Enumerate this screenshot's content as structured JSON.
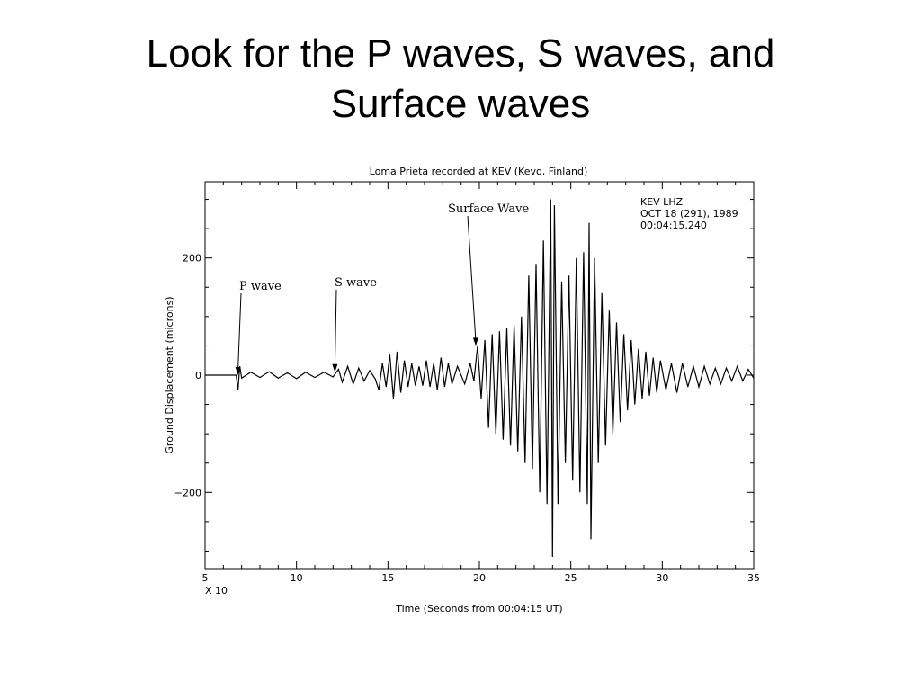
{
  "slide": {
    "title_line1": "Look for the P waves, S waves, and",
    "title_line2": "Surface waves"
  },
  "chart_data": {
    "type": "line",
    "title": "Loma Prieta recorded at KEV (Kevo, Finland)",
    "xlabel": "Time (Seconds from 00:04:15 UT)",
    "ylabel": "Ground Displacement (microns)",
    "x_multiplier_label": "X 10",
    "xlim": [
      5,
      35
    ],
    "ylim": [
      -330,
      330
    ],
    "xticks": [
      5,
      10,
      15,
      20,
      25,
      30,
      35
    ],
    "yticks": [
      200,
      0,
      -200
    ],
    "ytick_labels": [
      "200",
      "0",
      "−200"
    ],
    "grid": false,
    "info_lines": [
      "KEV   LHZ",
      "OCT 18 (291), 1989",
      "00:04:15.240"
    ],
    "annotations": [
      {
        "label": "P wave",
        "x": 6.8,
        "y": 0
      },
      {
        "label": "S wave",
        "x": 12.1,
        "y": 5
      },
      {
        "label": "Surface Wave",
        "x": 19.8,
        "y": 50
      }
    ],
    "series": [
      {
        "values": [
          [
            5.0,
            0
          ],
          [
            6.7,
            0
          ],
          [
            6.8,
            -25
          ],
          [
            6.9,
            15
          ],
          [
            7.0,
            -5
          ],
          [
            7.5,
            5
          ],
          [
            8.0,
            -4
          ],
          [
            8.5,
            6
          ],
          [
            9.0,
            -5
          ],
          [
            9.5,
            4
          ],
          [
            10.0,
            -6
          ],
          [
            10.5,
            5
          ],
          [
            11.0,
            -4
          ],
          [
            11.5,
            5
          ],
          [
            12.0,
            -3
          ],
          [
            12.3,
            10
          ],
          [
            12.5,
            -12
          ],
          [
            12.8,
            15
          ],
          [
            13.1,
            -15
          ],
          [
            13.4,
            12
          ],
          [
            13.7,
            -10
          ],
          [
            14.0,
            8
          ],
          [
            14.3,
            -6
          ],
          [
            14.5,
            -25
          ],
          [
            14.7,
            20
          ],
          [
            14.9,
            -20
          ],
          [
            15.1,
            35
          ],
          [
            15.3,
            -40
          ],
          [
            15.5,
            40
          ],
          [
            15.7,
            -30
          ],
          [
            15.9,
            25
          ],
          [
            16.1,
            -20
          ],
          [
            16.3,
            20
          ],
          [
            16.5,
            -18
          ],
          [
            16.7,
            15
          ],
          [
            16.9,
            -18
          ],
          [
            17.1,
            25
          ],
          [
            17.3,
            -20
          ],
          [
            17.5,
            20
          ],
          [
            17.7,
            -25
          ],
          [
            17.9,
            30
          ],
          [
            18.1,
            -20
          ],
          [
            18.3,
            20
          ],
          [
            18.5,
            -15
          ],
          [
            18.8,
            15
          ],
          [
            19.2,
            -15
          ],
          [
            19.5,
            20
          ],
          [
            19.7,
            -10
          ],
          [
            19.9,
            50
          ],
          [
            20.1,
            -40
          ],
          [
            20.3,
            60
          ],
          [
            20.5,
            -90
          ],
          [
            20.7,
            70
          ],
          [
            20.9,
            -100
          ],
          [
            21.1,
            75
          ],
          [
            21.3,
            -110
          ],
          [
            21.5,
            80
          ],
          [
            21.7,
            -120
          ],
          [
            21.9,
            85
          ],
          [
            22.1,
            -130
          ],
          [
            22.3,
            100
          ],
          [
            22.5,
            -150
          ],
          [
            22.7,
            170
          ],
          [
            22.9,
            -160
          ],
          [
            23.1,
            190
          ],
          [
            23.3,
            -200
          ],
          [
            23.5,
            230
          ],
          [
            23.7,
            -220
          ],
          [
            23.9,
            300
          ],
          [
            24.0,
            -310
          ],
          [
            24.1,
            290
          ],
          [
            24.3,
            -220
          ],
          [
            24.5,
            160
          ],
          [
            24.7,
            -150
          ],
          [
            24.9,
            170
          ],
          [
            25.1,
            -180
          ],
          [
            25.3,
            200
          ],
          [
            25.5,
            -200
          ],
          [
            25.7,
            210
          ],
          [
            25.9,
            -220
          ],
          [
            26.0,
            260
          ],
          [
            26.1,
            -280
          ],
          [
            26.3,
            200
          ],
          [
            26.5,
            -150
          ],
          [
            26.7,
            140
          ],
          [
            26.9,
            -120
          ],
          [
            27.1,
            110
          ],
          [
            27.3,
            -100
          ],
          [
            27.5,
            90
          ],
          [
            27.7,
            -80
          ],
          [
            27.9,
            70
          ],
          [
            28.1,
            -60
          ],
          [
            28.3,
            60
          ],
          [
            28.5,
            -50
          ],
          [
            28.7,
            45
          ],
          [
            28.9,
            -40
          ],
          [
            29.1,
            40
          ],
          [
            29.3,
            -35
          ],
          [
            29.5,
            30
          ],
          [
            29.7,
            -30
          ],
          [
            29.9,
            25
          ],
          [
            30.2,
            -25
          ],
          [
            30.5,
            20
          ],
          [
            30.8,
            -30
          ],
          [
            31.1,
            20
          ],
          [
            31.4,
            -20
          ],
          [
            31.7,
            15
          ],
          [
            32.0,
            -20
          ],
          [
            32.3,
            15
          ],
          [
            32.6,
            -15
          ],
          [
            32.9,
            12
          ],
          [
            33.2,
            -15
          ],
          [
            33.5,
            12
          ],
          [
            33.8,
            -10
          ],
          [
            34.1,
            15
          ],
          [
            34.4,
            -10
          ],
          [
            34.7,
            10
          ],
          [
            35.0,
            -5
          ]
        ]
      }
    ]
  }
}
